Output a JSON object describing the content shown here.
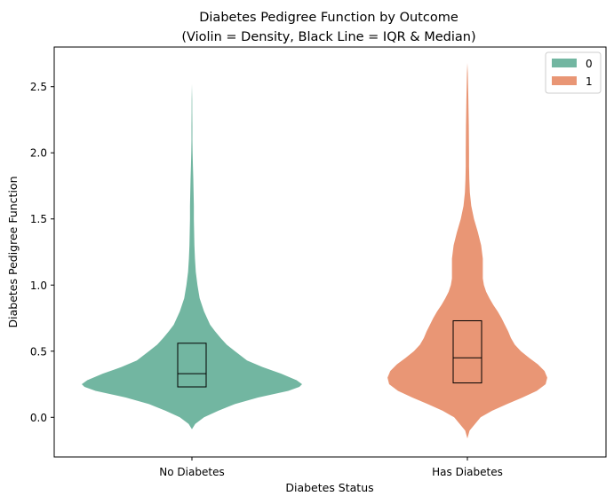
{
  "chart_data": {
    "type": "violin",
    "title_line1": "Diabetes Pedigree Function by Outcome",
    "title_line2": "(Violin = Density, Black Line = IQR & Median)",
    "xlabel": "Diabetes Status",
    "ylabel": "Diabetes Pedigree Function",
    "ylim": [
      -0.3,
      2.8
    ],
    "yticks": [
      "0.0",
      "0.5",
      "1.0",
      "1.5",
      "2.0",
      "2.5"
    ],
    "categories": [
      "No Diabetes",
      "Has Diabetes"
    ],
    "legend": {
      "placement": "top-right",
      "entries": [
        "0",
        "1"
      ]
    },
    "grid": false,
    "series": [
      {
        "name": "0",
        "color": "#72b6a1",
        "min": -0.09,
        "max": 2.52,
        "q1": 0.23,
        "median": 0.33,
        "q3": 0.56,
        "density": [
          [
            -0.09,
            0.0
          ],
          [
            -0.05,
            0.06
          ],
          [
            0.0,
            0.22
          ],
          [
            0.05,
            0.48
          ],
          [
            0.1,
            0.78
          ],
          [
            0.15,
            1.2
          ],
          [
            0.2,
            1.75
          ],
          [
            0.23,
            1.95
          ],
          [
            0.25,
            2.0
          ],
          [
            0.28,
            1.9
          ],
          [
            0.33,
            1.62
          ],
          [
            0.38,
            1.28
          ],
          [
            0.43,
            1.0
          ],
          [
            0.5,
            0.78
          ],
          [
            0.55,
            0.63
          ],
          [
            0.6,
            0.52
          ],
          [
            0.65,
            0.42
          ],
          [
            0.7,
            0.33
          ],
          [
            0.8,
            0.22
          ],
          [
            0.9,
            0.14
          ],
          [
            1.0,
            0.1
          ],
          [
            1.1,
            0.07
          ],
          [
            1.2,
            0.055
          ],
          [
            1.3,
            0.045
          ],
          [
            1.4,
            0.04
          ],
          [
            1.5,
            0.035
          ],
          [
            1.6,
            0.035
          ],
          [
            1.7,
            0.03
          ],
          [
            1.8,
            0.025
          ],
          [
            1.9,
            0.018
          ],
          [
            2.0,
            0.012
          ],
          [
            2.1,
            0.008
          ],
          [
            2.2,
            0.008
          ],
          [
            2.3,
            0.006
          ],
          [
            2.4,
            0.005
          ],
          [
            2.52,
            0.0
          ]
        ]
      },
      {
        "name": "1",
        "color": "#e99675",
        "min": -0.16,
        "max": 2.68,
        "q1": 0.26,
        "median": 0.45,
        "q3": 0.73,
        "density": [
          [
            -0.16,
            0.0
          ],
          [
            -0.1,
            0.04
          ],
          [
            0.0,
            0.24
          ],
          [
            0.05,
            0.45
          ],
          [
            0.1,
            0.72
          ],
          [
            0.15,
            1.0
          ],
          [
            0.2,
            1.26
          ],
          [
            0.25,
            1.42
          ],
          [
            0.3,
            1.45
          ],
          [
            0.35,
            1.4
          ],
          [
            0.4,
            1.28
          ],
          [
            0.45,
            1.12
          ],
          [
            0.5,
            0.97
          ],
          [
            0.55,
            0.86
          ],
          [
            0.6,
            0.79
          ],
          [
            0.65,
            0.74
          ],
          [
            0.7,
            0.68
          ],
          [
            0.75,
            0.62
          ],
          [
            0.8,
            0.55
          ],
          [
            0.85,
            0.47
          ],
          [
            0.9,
            0.4
          ],
          [
            0.95,
            0.34
          ],
          [
            1.0,
            0.3
          ],
          [
            1.05,
            0.28
          ],
          [
            1.1,
            0.28
          ],
          [
            1.2,
            0.28
          ],
          [
            1.3,
            0.25
          ],
          [
            1.4,
            0.19
          ],
          [
            1.5,
            0.12
          ],
          [
            1.6,
            0.07
          ],
          [
            1.7,
            0.045
          ],
          [
            1.8,
            0.035
          ],
          [
            1.9,
            0.03
          ],
          [
            2.0,
            0.03
          ],
          [
            2.1,
            0.028
          ],
          [
            2.2,
            0.026
          ],
          [
            2.3,
            0.022
          ],
          [
            2.4,
            0.018
          ],
          [
            2.5,
            0.013
          ],
          [
            2.6,
            0.008
          ],
          [
            2.68,
            0.0
          ]
        ]
      }
    ]
  }
}
